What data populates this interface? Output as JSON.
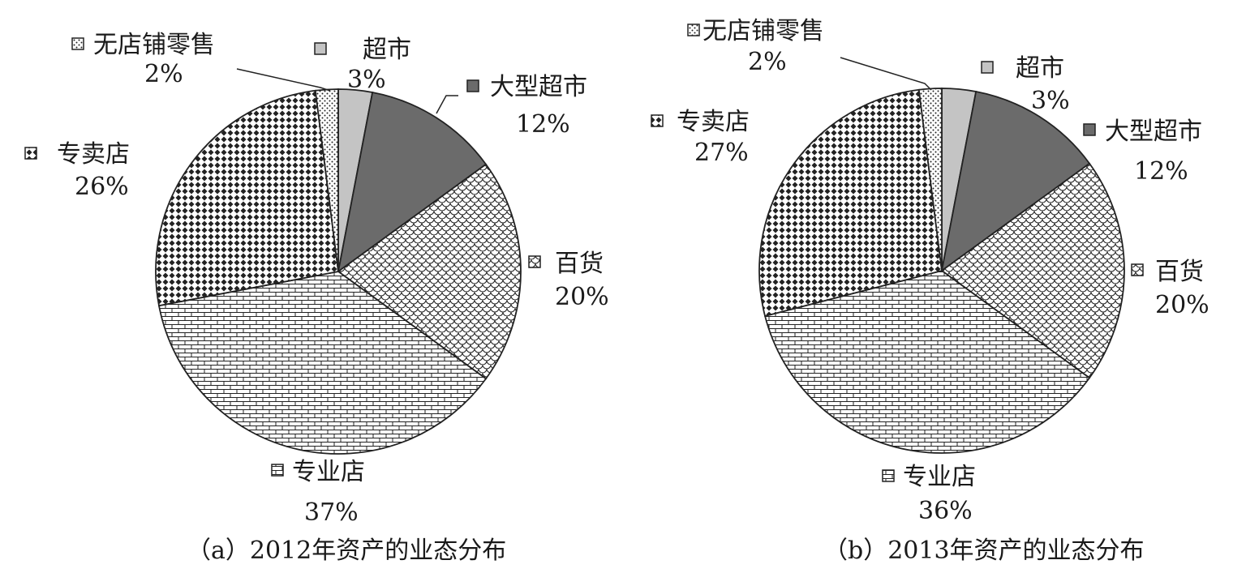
{
  "chart_data": [
    {
      "type": "pie",
      "title": "（a）2012年资产的业态分布",
      "slices": [
        {
          "name": "超市",
          "value": 3,
          "label": "3%",
          "pattern": "light-gray"
        },
        {
          "name": "大型超市",
          "value": 12,
          "label": "12%",
          "pattern": "dark-gray"
        },
        {
          "name": "百货",
          "value": 20,
          "label": "20%",
          "pattern": "scales"
        },
        {
          "name": "专业店",
          "value": 37,
          "label": "37%",
          "pattern": "bricks"
        },
        {
          "name": "专卖店",
          "value": 26,
          "label": "26%",
          "pattern": "diamonds"
        },
        {
          "name": "无店铺零售",
          "value": 2,
          "label": "2%",
          "pattern": "dots"
        }
      ]
    },
    {
      "type": "pie",
      "title": "（b）2013年资产的业态分布",
      "slices": [
        {
          "name": "超市",
          "value": 3,
          "label": "3%",
          "pattern": "light-gray"
        },
        {
          "name": "大型超市",
          "value": 12,
          "label": "12%",
          "pattern": "dark-gray"
        },
        {
          "name": "百货",
          "value": 20,
          "label": "20%",
          "pattern": "scales"
        },
        {
          "name": "专业店",
          "value": 36,
          "label": "36%",
          "pattern": "bricks"
        },
        {
          "name": "专卖店",
          "value": 27,
          "label": "27%",
          "pattern": "diamonds"
        },
        {
          "name": "无店铺零售",
          "value": 2,
          "label": "2%",
          "pattern": "dots"
        }
      ]
    }
  ]
}
